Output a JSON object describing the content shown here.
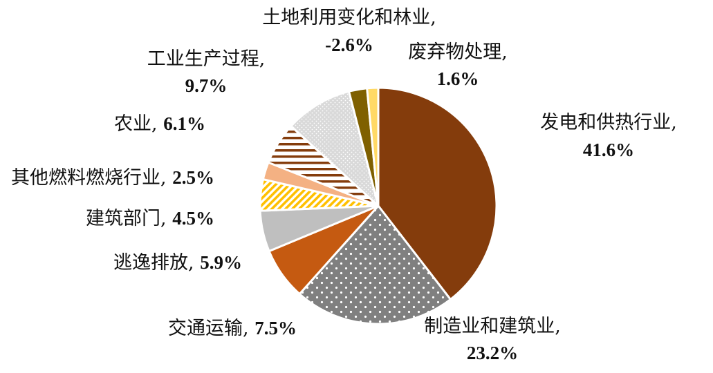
{
  "chart_data": {
    "type": "pie",
    "title": "",
    "start_angle_deg": 0,
    "direction": "clockwise",
    "colors": {
      "power": "#843c0c",
      "manufacturing": "#808080",
      "transport": "#c55a11",
      "fugitive": "#bfbfbf",
      "building": "#f4b183",
      "other_fuel": "#f4b183",
      "agriculture": "#843c0c",
      "industrial": "#d9d9d9",
      "land_use": "#7f6000",
      "waste": "#ffd966",
      "separator": "#ffffff"
    },
    "slices": [
      {
        "key": "power",
        "name": "发电和供热行业",
        "value": 41.6,
        "label": "41.6%",
        "sep": ",",
        "pattern": "solid"
      },
      {
        "key": "manufacturing",
        "name": "制造业和建筑业",
        "value": 23.2,
        "label": "23.2%",
        "sep": ",",
        "pattern": "dots"
      },
      {
        "key": "transport",
        "name": "交通运输",
        "value": 7.5,
        "label": "7.5%",
        "sep": ", ",
        "pattern": "solid"
      },
      {
        "key": "fugitive",
        "name": "逃逸排放",
        "value": 5.9,
        "label": "5.9%",
        "sep": ", ",
        "pattern": "solid"
      },
      {
        "key": "building",
        "name": "建筑部门",
        "value": 4.5,
        "label": "4.5%",
        "sep": ", ",
        "pattern": "diag"
      },
      {
        "key": "other_fuel",
        "name": "其他燃料燃烧行业",
        "value": 2.5,
        "label": "2.5%",
        "sep": ", ",
        "pattern": "solid"
      },
      {
        "key": "agriculture",
        "name": "农业",
        "value": 6.1,
        "label": "6.1%",
        "sep": ", ",
        "pattern": "hstripes"
      },
      {
        "key": "industrial",
        "name": "工业生产过程",
        "value": 9.7,
        "label": "9.7%",
        "sep": ",",
        "pattern": "speckle"
      },
      {
        "key": "land_use",
        "name": "土地利用变化和林业",
        "value": 2.6,
        "label": "-2.6%",
        "sep": ",",
        "pattern": "solid"
      },
      {
        "key": "waste",
        "name": "废弃物处理",
        "value": 1.6,
        "label": "1.6%",
        "sep": ",",
        "pattern": "solid"
      }
    ]
  }
}
